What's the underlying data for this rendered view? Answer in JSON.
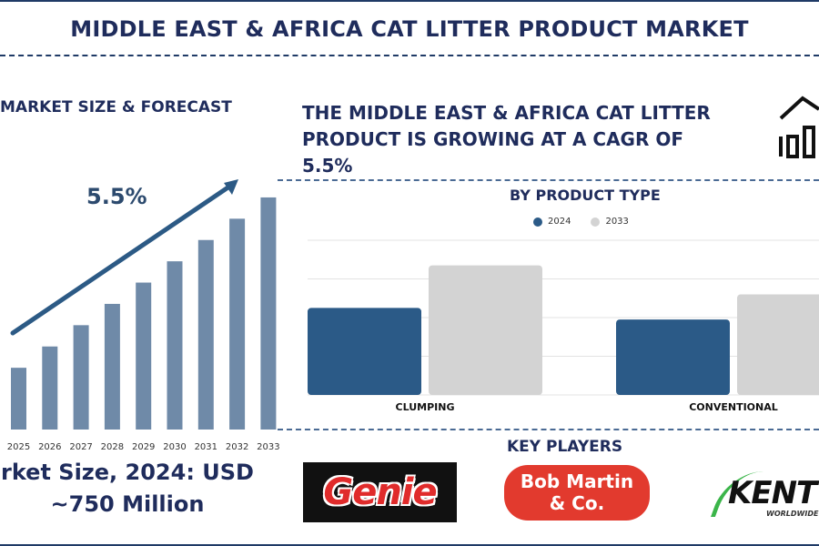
{
  "page": {
    "title": "MIDDLE EAST & AFRICA CAT LITTER PRODUCT MARKET",
    "left_heading": "MARKET SIZE & FORECAST",
    "cagr_text": "5.5%",
    "right_heading_lines": [
      "THE MIDDLE EAST & AFRICA CAT LITTER",
      "PRODUCT IS GROWING AT A CAGR OF",
      "5.5%"
    ],
    "product_heading": "BY PRODUCT TYPE",
    "key_players_heading": "KEY PLAYERS",
    "market_size_line1": "rket Size, 2024: USD",
    "market_size_line2": "~750 Million",
    "icon": "building-bar-chart-icon"
  },
  "colors": {
    "navy": "#1f2c5c",
    "bar_forecast": "#6f8aa8",
    "series_2024": "#2b5a87",
    "series_2033": "#d3d3d3",
    "arrow": "#2c5a85"
  },
  "chart_data": [
    {
      "type": "bar",
      "categories": [
        "2025",
        "2026",
        "2027",
        "2028",
        "2029",
        "2030",
        "2031",
        "2032",
        "2033"
      ],
      "values": [
        29,
        39,
        49,
        59,
        69,
        79,
        89,
        99,
        109
      ],
      "title": "MARKET SIZE & FORECAST",
      "annotation": "5.5%",
      "ylim": [
        0,
        110
      ],
      "grid": false
    },
    {
      "type": "bar",
      "title": "BY PRODUCT TYPE",
      "categories": [
        "CLUMPING",
        "CONVENTIONAL"
      ],
      "series": [
        {
          "name": "2024",
          "values": [
            45,
            39
          ]
        },
        {
          "name": "2033",
          "values": [
            67,
            52
          ]
        }
      ],
      "ylim": [
        0,
        80
      ],
      "grid": true,
      "legend": "top-center"
    }
  ],
  "key_players": [
    {
      "name": "Genie",
      "label": "Genie"
    },
    {
      "name": "Bob Martin & Co.",
      "label_line1": "Bob Martin",
      "label_line2": "& Co."
    },
    {
      "name": "KENT",
      "label": "KENT",
      "sub": "WORLDWIDE"
    }
  ]
}
